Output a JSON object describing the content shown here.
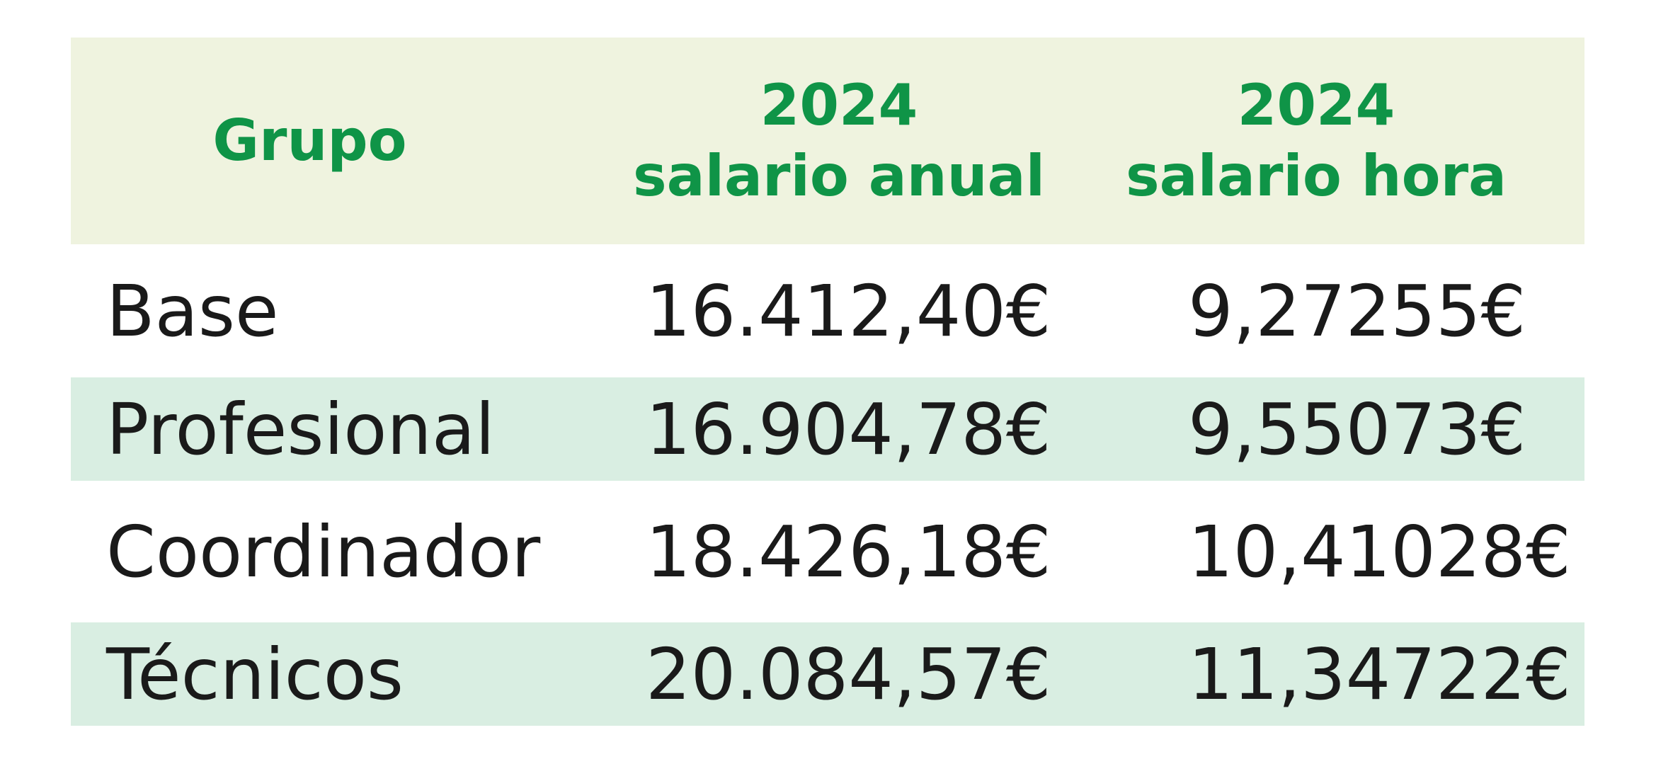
{
  "table": {
    "header": [
      [
        "Grupo"
      ],
      [
        "2024",
        "salario anual"
      ],
      [
        "2024",
        "salario hora"
      ]
    ],
    "rows": [
      [
        "Base",
        "16.412,40€",
        "9,27255€"
      ],
      [
        "Profesional",
        "16.904,78€",
        "9,55073€"
      ],
      [
        "Coordinador",
        "18.426,18€",
        "10,41028€"
      ],
      [
        "Técnicos",
        "20.084,57€",
        "11,34722€"
      ]
    ]
  }
}
